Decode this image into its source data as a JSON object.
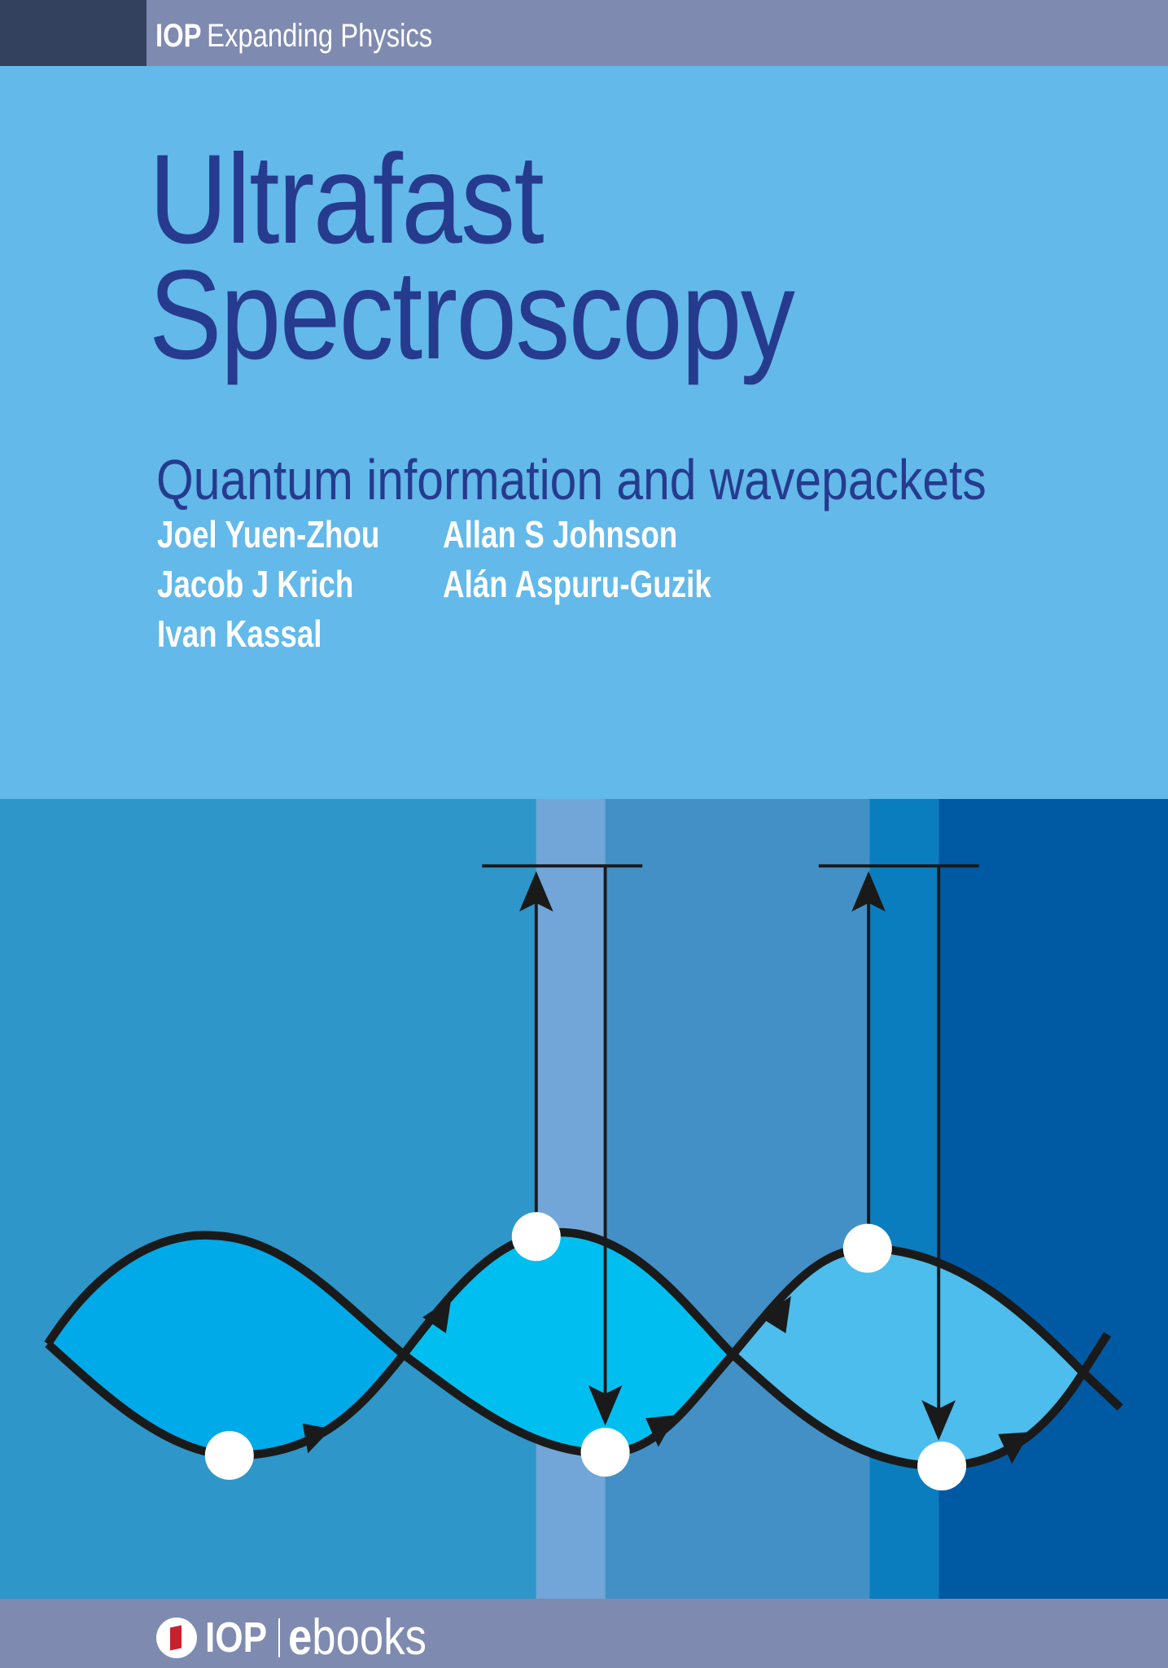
{
  "header": {
    "publisher": "IOP",
    "series": "Expanding Physics"
  },
  "book": {
    "title_line1": "Ultrafast",
    "title_line2": "Spectroscopy",
    "subtitle": "Quantum information and wavepackets",
    "authors": [
      "Joel Yuen-Zhou",
      "Jacob J Krich",
      "Ivan Kassal",
      "Allan S Johnson",
      "Alán Aspuru-Guzik"
    ]
  },
  "footer": {
    "publisher": "IOP",
    "ebooks_e": "e",
    "ebooks_rest": "books"
  },
  "colors": {
    "top_bar": "#7f8ab0",
    "top_bar_dark": "#33415f",
    "background": "#63b9e9",
    "title": "#263b8e",
    "strips": [
      "#2e96c9",
      "#72a5d8",
      "#4290c6",
      "#0a7dbf",
      "#0059a3"
    ],
    "lobes": [
      "#00a9e8",
      "#00bff0",
      "#4cbdec"
    ],
    "logo_red": "#c8202e"
  }
}
